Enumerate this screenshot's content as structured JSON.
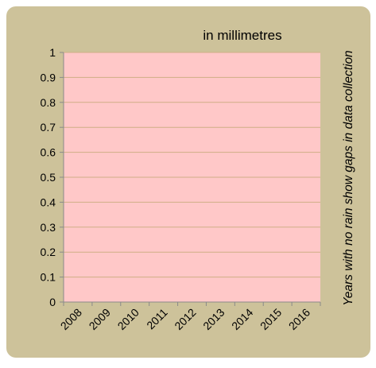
{
  "chart_data": {
    "type": "bar",
    "title": "in millimetres",
    "note": "Years with no rain show gaps in data collection",
    "categories": [
      "2008",
      "2009",
      "2010",
      "2011",
      "2012",
      "2013",
      "2014",
      "2015",
      "2016"
    ],
    "values": [
      0,
      0,
      0,
      0,
      0,
      0,
      0,
      0,
      0
    ],
    "ylim": [
      0,
      1
    ],
    "yticks": [
      "0",
      "0.1",
      "0.2",
      "0.3",
      "0.4",
      "0.5",
      "0.6",
      "0.7",
      "0.8",
      "0.9",
      "1"
    ],
    "grid": true,
    "colors": {
      "frame_background": "#cdc29a",
      "plot_background": "#ffc8c8",
      "gridline": "#cfae86",
      "axis": "#8a8a8a",
      "text": "#000000"
    }
  }
}
